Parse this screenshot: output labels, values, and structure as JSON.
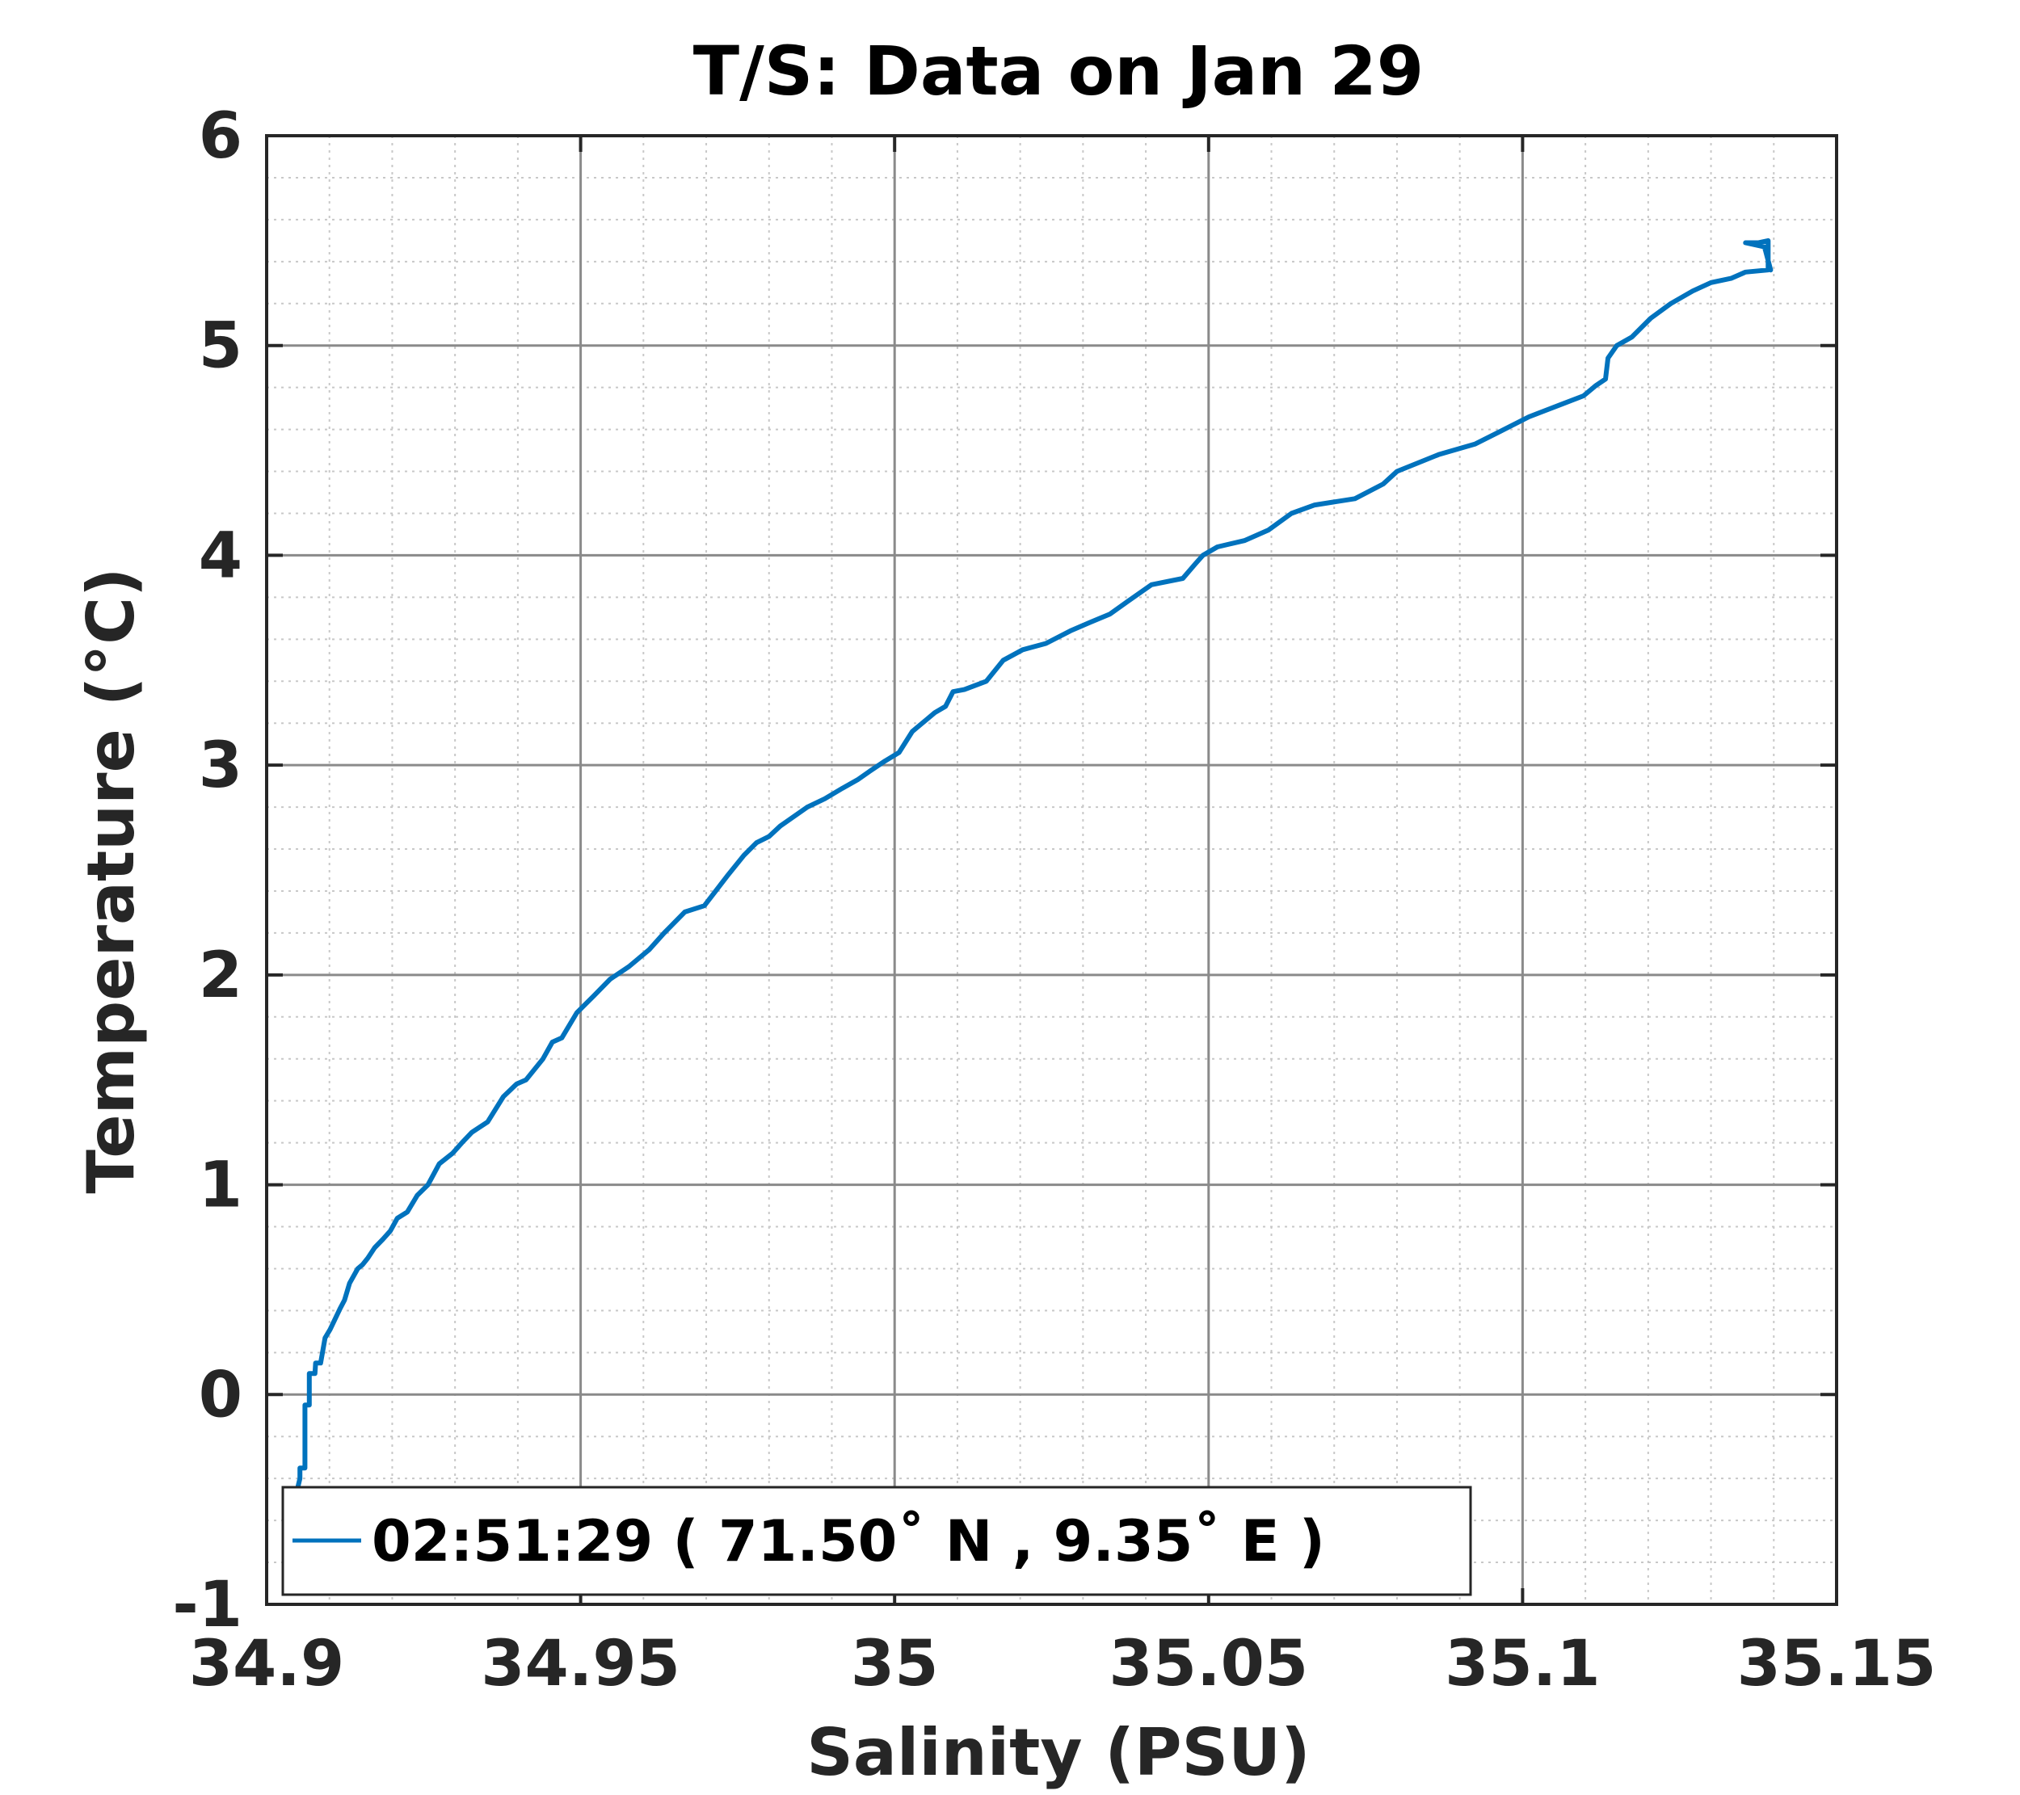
{
  "chart_data": {
    "type": "line",
    "title": "T/S: Data on Jan 29",
    "xlabel": "Salinity (PSU)",
    "ylabel": "Temperature (°C)",
    "xlim": [
      34.9,
      35.15
    ],
    "ylim": [
      -1,
      6
    ],
    "xticks": [
      34.9,
      34.95,
      35,
      35.05,
      35.1,
      35.15
    ],
    "xtick_labels": [
      "34.9",
      "34.95",
      "35",
      "35.05",
      "35.1",
      "35.15"
    ],
    "yticks": [
      -1,
      0,
      1,
      2,
      3,
      4,
      5,
      6
    ],
    "ytick_labels": [
      "-1",
      "0",
      "1",
      "2",
      "3",
      "4",
      "5",
      "6"
    ],
    "grid": true,
    "minor_grid": true,
    "legend_position": "bottom-left",
    "series": [
      {
        "name": "02:51:29 ( 71.50˚ N , 9.35˚ E )",
        "color": "#0072BD",
        "x": [
          34.9045,
          34.9053,
          34.9053,
          34.9061,
          34.9061,
          34.9068,
          34.9068,
          34.9077,
          34.9078,
          34.9086,
          34.9093,
          34.9101,
          34.9109,
          34.9117,
          34.9124,
          34.9132,
          34.9145,
          34.9153,
          34.9161,
          34.9172,
          34.9185,
          34.9197,
          34.9208,
          34.9224,
          34.924,
          34.9257,
          34.9275,
          34.9296,
          34.9311,
          34.9327,
          34.9352,
          34.9377,
          34.9398,
          34.9413,
          34.944,
          34.9455,
          34.947,
          34.9494,
          34.9521,
          34.9547,
          34.9577,
          34.9609,
          34.9633,
          34.9666,
          34.9697,
          34.9733,
          34.976,
          34.978,
          34.98,
          34.9818,
          34.9861,
          34.9889,
          34.9917,
          34.9941,
          34.996,
          34.9985,
          35.0007,
          35.0028,
          35.0064,
          35.0081,
          35.0093,
          35.0111,
          35.0146,
          35.0173,
          35.0204,
          35.0241,
          35.028,
          35.0311,
          35.0343,
          35.0371,
          35.0409,
          35.0459,
          35.0479,
          35.0491,
          35.0514,
          35.0557,
          35.0595,
          35.0632,
          35.0669,
          35.0733,
          35.0778,
          35.08,
          35.0866,
          35.0924,
          35.0964,
          35.101,
          35.1062,
          35.1097,
          35.1117,
          35.1132,
          35.1136,
          35.115,
          35.1174,
          35.1204,
          35.1236,
          35.1271,
          35.13,
          35.1332,
          35.1355,
          35.1391,
          35.1391,
          35.1375,
          35.1355,
          35.1385,
          35.1387,
          35.1395
        ],
        "y": [
          -0.5,
          -0.4,
          -0.35,
          -0.35,
          -0.05,
          -0.05,
          0.1,
          0.1,
          0.15,
          0.15,
          0.27,
          0.31,
          0.36,
          0.41,
          0.45,
          0.53,
          0.6,
          0.62,
          0.65,
          0.7,
          0.74,
          0.78,
          0.84,
          0.87,
          0.95,
          1.0,
          1.1,
          1.15,
          1.2,
          1.25,
          1.3,
          1.42,
          1.48,
          1.5,
          1.6,
          1.68,
          1.7,
          1.82,
          1.9,
          1.98,
          2.04,
          2.12,
          2.2,
          2.3,
          2.33,
          2.47,
          2.57,
          2.63,
          2.66,
          2.71,
          2.8,
          2.84,
          2.89,
          2.93,
          2.97,
          3.02,
          3.06,
          3.16,
          3.25,
          3.28,
          3.35,
          3.36,
          3.4,
          3.5,
          3.55,
          3.58,
          3.64,
          3.68,
          3.72,
          3.78,
          3.86,
          3.89,
          3.96,
          4.0,
          4.04,
          4.07,
          4.12,
          4.2,
          4.24,
          4.27,
          4.34,
          4.4,
          4.48,
          4.53,
          4.59,
          4.66,
          4.72,
          4.76,
          4.81,
          4.84,
          4.94,
          5.0,
          5.04,
          5.13,
          5.2,
          5.26,
          5.3,
          5.32,
          5.35,
          5.36,
          5.5,
          5.49,
          5.49,
          5.47,
          5.45,
          5.36
        ]
      }
    ]
  }
}
